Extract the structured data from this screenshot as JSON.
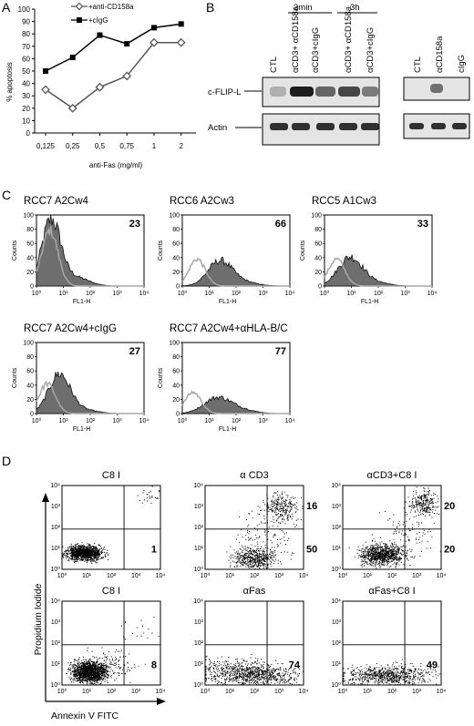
{
  "panels": {
    "A": "A",
    "B": "B",
    "C": "C",
    "D": "D"
  },
  "colors": {
    "series_a": "#555555",
    "series_b": "#000000",
    "fill": "#6e6e6e",
    "light_line": "#a8a8a8",
    "blot_bg": "#e4e4e4",
    "band": "#1a1a1a"
  },
  "chart_data": {
    "type": "line",
    "categories": [
      "0,125",
      "0,25",
      "0,5",
      "0,75",
      "1",
      "2"
    ],
    "series": [
      {
        "name": "+anti-CD158a",
        "marker": "open-diamond",
        "values": [
          35,
          20,
          37,
          46,
          73,
          73
        ]
      },
      {
        "name": "+cIgG",
        "marker": "filled-square",
        "values": [
          50,
          61,
          79,
          72,
          85,
          88
        ]
      }
    ],
    "xlabel": "anti-Fas (mg/ml)",
    "ylabel": "% apoptosis",
    "ylim": [
      0,
      100
    ],
    "yticks": [
      "0",
      "10",
      "20",
      "30",
      "40",
      "50",
      "60",
      "70",
      "80",
      "90",
      "100"
    ],
    "legend": "top-left"
  },
  "blot": {
    "time_labels": [
      "3min",
      "3h"
    ],
    "lanes_left": [
      "CTL",
      "αCD3+ αCD158a",
      "αCD3+cIgG",
      "αCD3+ αCD158a",
      "αCD3+cIgG"
    ],
    "lanes_right": [
      "CTL",
      "αCD158a",
      "cIgG"
    ],
    "row_labels": [
      "c-FLIP-L",
      "Actin"
    ]
  },
  "hist": {
    "yticks": [
      "0",
      "20",
      "40",
      "60",
      "80",
      "100"
    ],
    "xticks": [
      "10⁰",
      "10¹",
      "10²",
      "10³",
      "10⁴"
    ],
    "ylabel": "Counts",
    "xlabel": "FL1-H",
    "panels": [
      {
        "title": "RCC7 A2Cw4",
        "value": "23"
      },
      {
        "title": "RCC6 A2Cw3",
        "value": "66"
      },
      {
        "title": "RCC5 A1Cw3",
        "value": "33"
      },
      {
        "title": "RCC7 A2Cw4+cIgG",
        "value": "27"
      },
      {
        "title": "RCC7 A2Cw4+αHLA-B/C",
        "value": "77"
      }
    ]
  },
  "dot": {
    "ylabel": "Propidium Iodide",
    "xlabel": "Annexin V FITC",
    "ticks": [
      "10⁰",
      "10¹",
      "10²",
      "10³",
      "10⁴"
    ],
    "panels": [
      {
        "title": "C8 I",
        "upper": "",
        "lower": "1"
      },
      {
        "title": "α CD3",
        "upper": "16",
        "lower": "50"
      },
      {
        "title": "αCD3+C8 I",
        "upper": "20",
        "lower": "20"
      },
      {
        "title": "C8 I",
        "upper": "",
        "lower": "8"
      },
      {
        "title": "αFas",
        "upper": "",
        "lower": "74"
      },
      {
        "title": "αFas+C8 I",
        "upper": "",
        "lower": "49"
      }
    ]
  }
}
